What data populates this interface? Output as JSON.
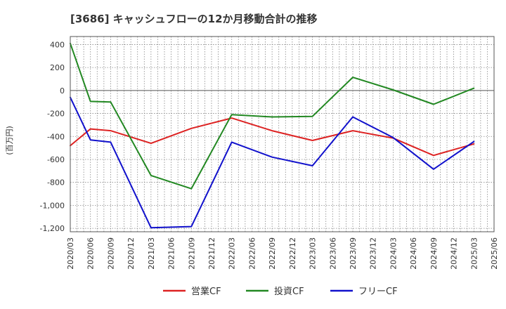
{
  "chart_data": {
    "type": "line",
    "title": "[3686]  キャッシュフローの12か月移動合計の推移",
    "ylabel": "(百万円)",
    "xlabel": "",
    "ylim": [
      -1230,
      470
    ],
    "yticks": [
      400,
      200,
      0,
      -200,
      -400,
      -600,
      -800,
      -1000,
      -1200
    ],
    "ytick_labels": [
      "400",
      "200",
      "0",
      "-200",
      "-400",
      "-600",
      "-800",
      "-1,000",
      "-1,200"
    ],
    "categories": [
      "2020/03",
      "2020/06",
      "2020/09",
      "2020/12",
      "2021/03",
      "2021/06",
      "2021/09",
      "2021/12",
      "2022/03",
      "2022/06",
      "2022/09",
      "2022/12",
      "2023/03",
      "2023/06",
      "2023/09",
      "2023/12",
      "2024/03",
      "2024/06",
      "2024/09",
      "2024/12",
      "2025/03",
      "2025/06"
    ],
    "grid": true,
    "legend_position": "bottom",
    "series": [
      {
        "name": "営業CF",
        "color": "#dd2222",
        "values": [
          -480,
          -335,
          -350,
          null,
          -460,
          null,
          -330,
          null,
          -240,
          null,
          -350,
          null,
          -435,
          null,
          -350,
          null,
          -415,
          null,
          -565,
          null,
          -465,
          null
        ]
      },
      {
        "name": "投資CF",
        "color": "#228822",
        "values": [
          410,
          -95,
          -100,
          null,
          -740,
          null,
          -855,
          null,
          -210,
          null,
          -230,
          null,
          -225,
          null,
          115,
          null,
          5,
          null,
          -120,
          null,
          20,
          null
        ]
      },
      {
        "name": "フリーCF",
        "color": "#1111cc",
        "values": [
          -60,
          -430,
          -450,
          null,
          -1195,
          null,
          -1185,
          null,
          -450,
          null,
          -580,
          null,
          -655,
          null,
          -230,
          null,
          -410,
          null,
          -685,
          null,
          -445,
          null
        ]
      }
    ]
  }
}
